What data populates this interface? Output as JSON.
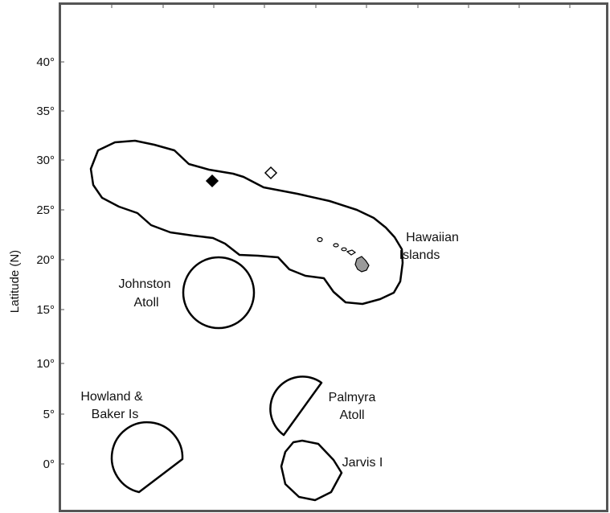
{
  "axis": {
    "ylabel": "Latitude (N)",
    "ticks": [
      {
        "value": 40,
        "label": "40°"
      },
      {
        "value": 35,
        "label": "35°"
      },
      {
        "value": 30,
        "label": "30°"
      },
      {
        "value": 25,
        "label": "25°"
      },
      {
        "value": 20,
        "label": "20°"
      },
      {
        "value": 15,
        "label": "15°"
      },
      {
        "value": 10,
        "label": "10°"
      },
      {
        "value": 5,
        "label": "5°"
      },
      {
        "value": 0,
        "label": "0°"
      }
    ]
  },
  "regions": {
    "hawaiian": {
      "line1": "Hawaiian",
      "line2": "Islands"
    },
    "johnston": {
      "line1": "Johnston",
      "line2": "Atoll"
    },
    "howland": {
      "line1": "Howland &",
      "line2": "Baker Is"
    },
    "palmyra": {
      "line1": "Palmyra",
      "line2": "Atoll"
    },
    "jarvis": {
      "line1": "Jarvis I"
    }
  },
  "markers": {
    "filled_diamond_color": "#000000",
    "open_diamond_color": "#ffffff"
  },
  "colors": {
    "frame": "#555555",
    "outline": "#000000",
    "island_fill": "#9a9a9a"
  }
}
